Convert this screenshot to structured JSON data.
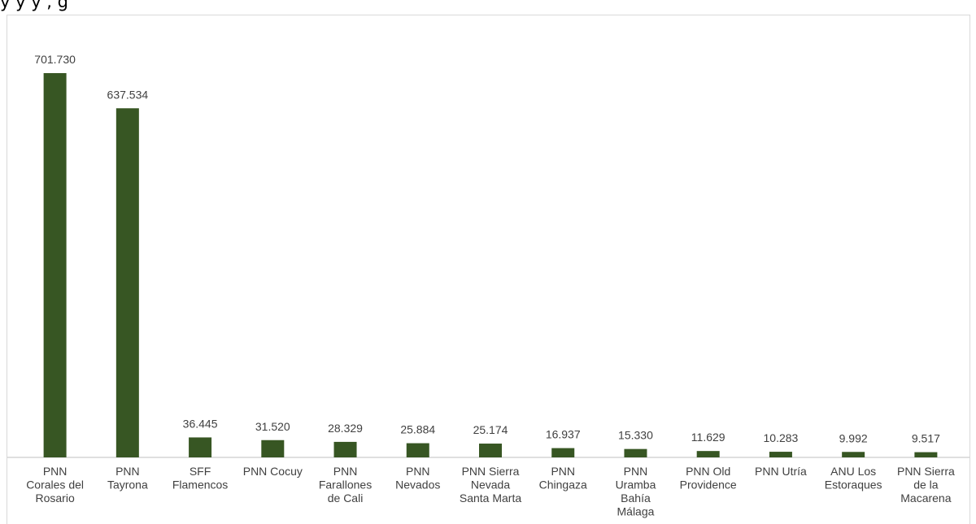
{
  "page": {
    "title_fragment": "y                                       y    y  ,                                             g"
  },
  "chart_data": {
    "type": "bar",
    "categories": [
      [
        "PNN",
        "Corales del",
        "Rosario"
      ],
      [
        "PNN",
        "Tayrona"
      ],
      [
        "SFF",
        "Flamencos"
      ],
      [
        "PNN Cocuy"
      ],
      [
        "PNN",
        "Farallones",
        "de Cali"
      ],
      [
        "PNN",
        "Nevados"
      ],
      [
        "PNN Sierra",
        "Nevada",
        "Santa Marta"
      ],
      [
        "PNN",
        "Chingaza"
      ],
      [
        "PNN",
        "Uramba",
        "Bahía",
        "Málaga"
      ],
      [
        "PNN Old",
        "Providence"
      ],
      [
        "PNN Utría"
      ],
      [
        "ANU Los",
        "Estoraques"
      ],
      [
        "PNN Sierra",
        "de la",
        "Macarena"
      ]
    ],
    "values": [
      701730,
      637534,
      36445,
      31520,
      28329,
      25884,
      25174,
      16937,
      15330,
      11629,
      10283,
      9992,
      9517
    ],
    "value_labels": [
      "701.730",
      "637.534",
      "36.445",
      "31.520",
      "28.329",
      "25.884",
      "25.174",
      "16.937",
      "15.330",
      "11.629",
      "10.283",
      "9.992",
      "9.517"
    ],
    "title": "",
    "xlabel": "",
    "ylabel": "",
    "ylim": [
      0,
      750000
    ],
    "grid": false,
    "legend": "none",
    "bar_color": "#375623",
    "axis_color": "#bfbfbf",
    "label_color": "#404040"
  }
}
